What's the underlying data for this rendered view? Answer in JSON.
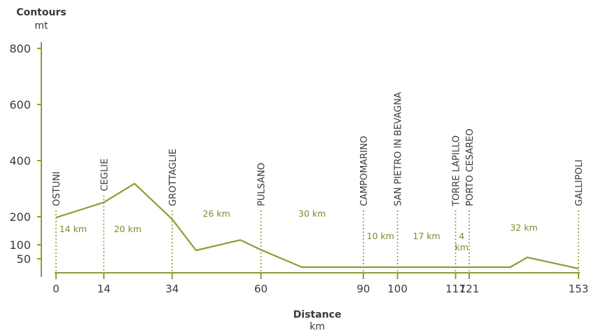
{
  "chart_data": {
    "type": "line",
    "title": "",
    "ylabel": "Contours",
    "yunit": "mt",
    "xlabel": "Distance",
    "xunit": "km",
    "ylim": [
      0,
      800
    ],
    "xlim": [
      0,
      153
    ],
    "yticks": [
      {
        "value": 800,
        "label": "800"
      },
      {
        "value": 600,
        "label": "600"
      },
      {
        "value": 400,
        "label": "400"
      },
      {
        "value": 200,
        "label": "200"
      },
      {
        "value": 100,
        "label": "100"
      },
      {
        "value": 50,
        "label": "50"
      }
    ],
    "xticks": [
      {
        "value": 0,
        "label": "0"
      },
      {
        "value": 14,
        "label": "14"
      },
      {
        "value": 34,
        "label": "34"
      },
      {
        "value": 60,
        "label": "60"
      },
      {
        "value": 90,
        "label": "90"
      },
      {
        "value": 100,
        "label": "100"
      },
      {
        "value": 117,
        "label": "117"
      },
      {
        "value": 121,
        "label": "121"
      },
      {
        "value": 153,
        "label": "153"
      }
    ],
    "profile": {
      "x": [
        0,
        14,
        23,
        34,
        41,
        54,
        60,
        72,
        90,
        100,
        117,
        121,
        133,
        138,
        153
      ],
      "y": [
        197,
        251,
        318,
        191,
        80,
        117,
        82,
        20,
        20,
        20,
        20,
        20,
        20,
        55,
        15
      ]
    },
    "towns": [
      {
        "name": "OSTUNI",
        "km": 0
      },
      {
        "name": "CEGLIE",
        "km": 14
      },
      {
        "name": "GROTTAGLIE",
        "km": 34
      },
      {
        "name": "PULSANO",
        "km": 60
      },
      {
        "name": "CAMPOMARINO",
        "km": 90
      },
      {
        "name": "SAN PIETRO IN BEVAGNA",
        "km": 100
      },
      {
        "name": "TORRE LAPILLO",
        "km": 117
      },
      {
        "name": "PORTO CESAREO",
        "km": 121
      },
      {
        "name": "GALLIPOLI",
        "km": 153
      }
    ],
    "segments": [
      {
        "label": "14 km",
        "x": 5,
        "y": 145
      },
      {
        "label": "20 km",
        "x": 21,
        "y": 145
      },
      {
        "label": "26 km",
        "x": 47,
        "y": 200
      },
      {
        "label": "30 km",
        "x": 75,
        "y": 200
      },
      {
        "label": "10 km",
        "x": 95,
        "y": 120
      },
      {
        "label": "17 km",
        "x": 108.5,
        "y": 120
      },
      {
        "label": "4\nkm",
        "x": 118.8,
        "y": 120
      },
      {
        "label": "32 km",
        "x": 137,
        "y": 150
      }
    ],
    "colors": {
      "line": "#8a9e35",
      "axis": "#8a9e35",
      "text": "#3a3a3a",
      "segment": "#7a8c2a"
    }
  }
}
